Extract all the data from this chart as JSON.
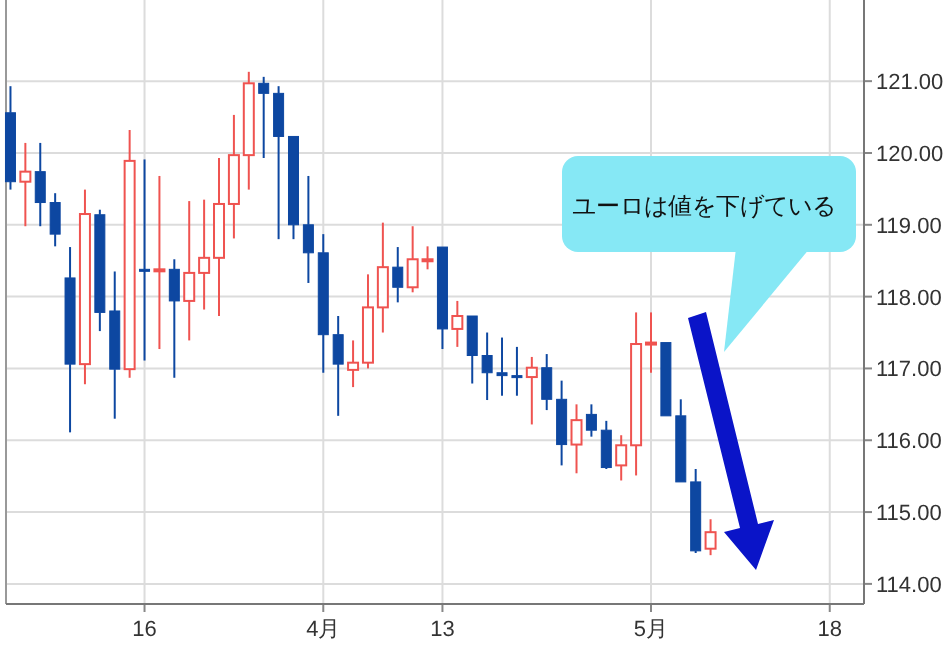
{
  "chart_data": {
    "type": "candlestick",
    "categories": [
      null,
      null,
      null,
      null,
      null,
      null,
      null,
      null,
      null,
      "16",
      null,
      null,
      null,
      null,
      null,
      null,
      null,
      null,
      null,
      null,
      null,
      "4月",
      null,
      null,
      null,
      null,
      null,
      null,
      null,
      "13",
      null,
      null,
      null,
      null,
      null,
      null,
      null,
      null,
      null,
      null,
      null,
      null,
      null,
      "5月",
      null,
      null,
      null,
      null,
      null,
      null,
      null,
      null,
      null,
      null,
      null,
      "18",
      null,
      null
    ],
    "ohlc": [
      [
        120.56,
        120.93,
        119.49,
        119.6
      ],
      [
        119.6,
        120.14,
        118.98,
        119.74
      ],
      [
        119.74,
        120.14,
        118.98,
        119.31
      ],
      [
        119.31,
        119.44,
        118.7,
        118.87
      ],
      [
        118.26,
        118.69,
        116.11,
        117.06
      ],
      [
        117.06,
        119.49,
        116.78,
        119.15
      ],
      [
        119.14,
        119.21,
        117.52,
        117.78
      ],
      [
        117.8,
        118.35,
        116.3,
        116.99
      ],
      [
        116.99,
        120.32,
        116.87,
        119.89
      ],
      [
        118.38,
        119.91,
        117.11,
        118.36
      ],
      [
        118.36,
        119.68,
        117.27,
        118.38
      ],
      [
        118.38,
        118.52,
        116.87,
        117.94
      ],
      [
        117.94,
        119.33,
        117.39,
        118.33
      ],
      [
        118.33,
        119.35,
        117.82,
        118.54
      ],
      [
        118.54,
        119.93,
        117.73,
        119.29
      ],
      [
        119.29,
        120.53,
        118.81,
        119.97
      ],
      [
        119.97,
        121.13,
        119.49,
        120.97
      ],
      [
        120.97,
        121.06,
        119.93,
        120.83
      ],
      [
        120.83,
        120.93,
        118.8,
        120.23
      ],
      [
        120.23,
        120.23,
        118.8,
        119.0
      ],
      [
        119.0,
        119.68,
        118.19,
        118.61
      ],
      [
        118.61,
        118.87,
        116.94,
        117.47
      ],
      [
        117.47,
        117.73,
        116.34,
        117.06
      ],
      [
        116.98,
        117.39,
        116.74,
        117.08
      ],
      [
        117.08,
        118.31,
        117.0,
        117.85
      ],
      [
        117.85,
        119.03,
        117.5,
        118.41
      ],
      [
        118.41,
        118.69,
        117.92,
        118.13
      ],
      [
        118.13,
        118.98,
        118.06,
        118.52
      ],
      [
        118.5,
        118.7,
        118.38,
        118.52
      ],
      [
        118.69,
        118.69,
        117.27,
        117.55
      ],
      [
        117.55,
        117.94,
        117.3,
        117.73
      ],
      [
        117.73,
        117.73,
        116.79,
        117.18
      ],
      [
        117.18,
        117.5,
        116.56,
        116.94
      ],
      [
        116.94,
        117.43,
        116.62,
        116.9
      ],
      [
        116.9,
        117.3,
        116.62,
        116.89
      ],
      [
        116.88,
        117.16,
        116.22,
        117.01
      ],
      [
        117.01,
        117.2,
        116.42,
        116.57
      ],
      [
        116.57,
        116.83,
        115.65,
        115.94
      ],
      [
        115.94,
        116.5,
        115.54,
        116.28
      ],
      [
        116.36,
        116.5,
        116.05,
        116.14
      ],
      [
        116.14,
        116.27,
        115.6,
        115.62
      ],
      [
        115.65,
        116.07,
        115.44,
        115.93
      ],
      [
        115.93,
        117.78,
        115.51,
        117.34
      ],
      [
        117.34,
        117.78,
        116.94,
        117.36
      ],
      [
        117.36,
        117.36,
        116.34,
        116.34
      ],
      [
        116.34,
        116.57,
        115.42,
        115.42
      ],
      [
        115.42,
        115.6,
        114.43,
        114.46
      ],
      [
        114.49,
        114.9,
        114.4,
        114.72
      ],
      null,
      null,
      null,
      null,
      null,
      null,
      null,
      null,
      null,
      null
    ],
    "colors": [
      "#0d47a1",
      "#ef5350",
      "#0d47a1",
      "#0d47a1",
      "#0d47a1",
      "#ef5350",
      "#0d47a1",
      "#0d47a1",
      "#ef5350",
      "#0d47a1",
      "#ef5350",
      "#0d47a1",
      "#ef5350",
      "#ef5350",
      "#ef5350",
      "#ef5350",
      "#ef5350",
      "#0d47a1",
      "#0d47a1",
      "#0d47a1",
      "#0d47a1",
      "#0d47a1",
      "#0d47a1",
      "#ef5350",
      "#ef5350",
      "#ef5350",
      "#0d47a1",
      "#ef5350",
      "#ef5350",
      "#0d47a1",
      "#ef5350",
      "#0d47a1",
      "#0d47a1",
      "#0d47a1",
      "#0d47a1",
      "#ef5350",
      "#0d47a1",
      "#0d47a1",
      "#ef5350",
      "#0d47a1",
      "#0d47a1",
      "#ef5350",
      "#ef5350",
      "#ef5350",
      "#0d47a1",
      "#0d47a1",
      "#0d47a1",
      "#ef5350",
      null,
      null,
      null,
      null,
      null,
      null,
      null,
      null,
      null,
      null
    ],
    "ylim": [
      113.72,
      122.13
    ],
    "yticks": [
      {
        "value": 114,
        "label": "114.00"
      },
      {
        "value": 115,
        "label": "115.00"
      },
      {
        "value": 116,
        "label": "116.00"
      },
      {
        "value": 117,
        "label": "117.00"
      },
      {
        "value": 118,
        "label": "118.00"
      },
      {
        "value": 119,
        "label": "119.00"
      },
      {
        "value": 120,
        "label": "120.00"
      },
      {
        "value": 121,
        "label": "121.00"
      }
    ],
    "grid": true,
    "annotations": [
      "ユーロは値を下げている"
    ]
  }
}
